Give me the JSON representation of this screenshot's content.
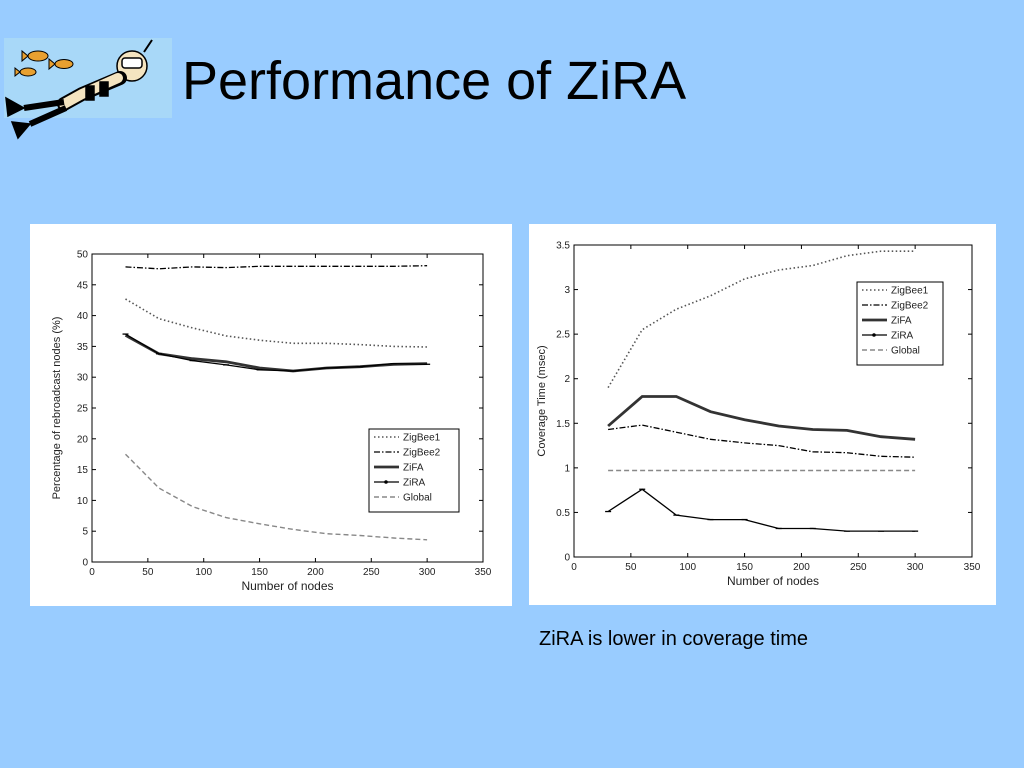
{
  "slide": {
    "title": "Performance of ZiRA",
    "caption": "ZiRA is lower in coverage time",
    "background": "#99ccff"
  },
  "logo": {
    "icon": "diver-with-fish-icon"
  },
  "chart_data": [
    {
      "type": "line",
      "title": "",
      "xlabel": "Number of nodes",
      "ylabel": "Percentage of rebroadcast nodes (%)",
      "xlim": [
        0,
        350
      ],
      "ylim": [
        0,
        50
      ],
      "xticks": [
        "0",
        "50",
        "100",
        "150",
        "200",
        "250",
        "300",
        "350"
      ],
      "yticks": [
        "0",
        "5",
        "10",
        "15",
        "20",
        "25",
        "30",
        "35",
        "40",
        "45",
        "50"
      ],
      "grid": false,
      "legend_position": "lower-right",
      "x": [
        30,
        60,
        90,
        120,
        150,
        180,
        210,
        240,
        270,
        300
      ],
      "series": [
        {
          "name": "ZigBee1",
          "style": "dotted",
          "values": [
            42.7,
            39.5,
            38.0,
            36.7,
            36.0,
            35.5,
            35.5,
            35.3,
            35.0,
            34.9
          ]
        },
        {
          "name": "ZigBee2",
          "style": "dashdot",
          "values": [
            47.9,
            47.6,
            47.9,
            47.8,
            48.0,
            48.0,
            48.0,
            48.0,
            48.0,
            48.1
          ]
        },
        {
          "name": "ZiFA",
          "style": "thick",
          "values": [
            36.8,
            33.8,
            33.0,
            32.5,
            31.5,
            31.0,
            31.5,
            31.7,
            32.1,
            32.2
          ]
        },
        {
          "name": "ZiRA",
          "style": "solid-marker",
          "values": [
            37.0,
            33.8,
            32.7,
            32.0,
            31.2,
            31.0,
            31.5,
            31.7,
            32.2,
            32.1
          ]
        },
        {
          "name": "Global",
          "style": "dashed",
          "values": [
            17.5,
            12.0,
            9.0,
            7.2,
            6.2,
            5.3,
            4.6,
            4.3,
            3.9,
            3.6
          ]
        }
      ]
    },
    {
      "type": "line",
      "title": "",
      "xlabel": "Number of nodes",
      "ylabel": "Coverage Time (msec)",
      "xlim": [
        0,
        350
      ],
      "ylim": [
        0,
        3.5
      ],
      "xticks": [
        "0",
        "50",
        "100",
        "150",
        "200",
        "250",
        "300",
        "350"
      ],
      "yticks": [
        "0",
        "0.5",
        "1",
        "1.5",
        "2",
        "2.5",
        "3",
        "3.5"
      ],
      "grid": false,
      "legend_position": "upper-right",
      "x": [
        30,
        60,
        90,
        120,
        150,
        180,
        210,
        240,
        270,
        300
      ],
      "series": [
        {
          "name": "ZigBee1",
          "style": "dotted",
          "values": [
            1.9,
            2.55,
            2.78,
            2.93,
            3.12,
            3.22,
            3.27,
            3.38,
            3.43,
            3.43
          ]
        },
        {
          "name": "ZigBee2",
          "style": "dashdot",
          "values": [
            1.43,
            1.48,
            1.4,
            1.32,
            1.28,
            1.25,
            1.18,
            1.17,
            1.13,
            1.12
          ]
        },
        {
          "name": "ZiFA",
          "style": "thick",
          "values": [
            1.47,
            1.8,
            1.8,
            1.63,
            1.54,
            1.47,
            1.43,
            1.42,
            1.35,
            1.32
          ]
        },
        {
          "name": "ZiRA",
          "style": "solid-marker",
          "values": [
            0.51,
            0.76,
            0.47,
            0.42,
            0.42,
            0.32,
            0.32,
            0.29,
            0.29,
            0.29
          ]
        },
        {
          "name": "Global",
          "style": "dashed",
          "values": [
            0.97,
            0.97,
            0.97,
            0.97,
            0.97,
            0.97,
            0.97,
            0.97,
            0.97,
            0.97
          ]
        }
      ]
    }
  ]
}
